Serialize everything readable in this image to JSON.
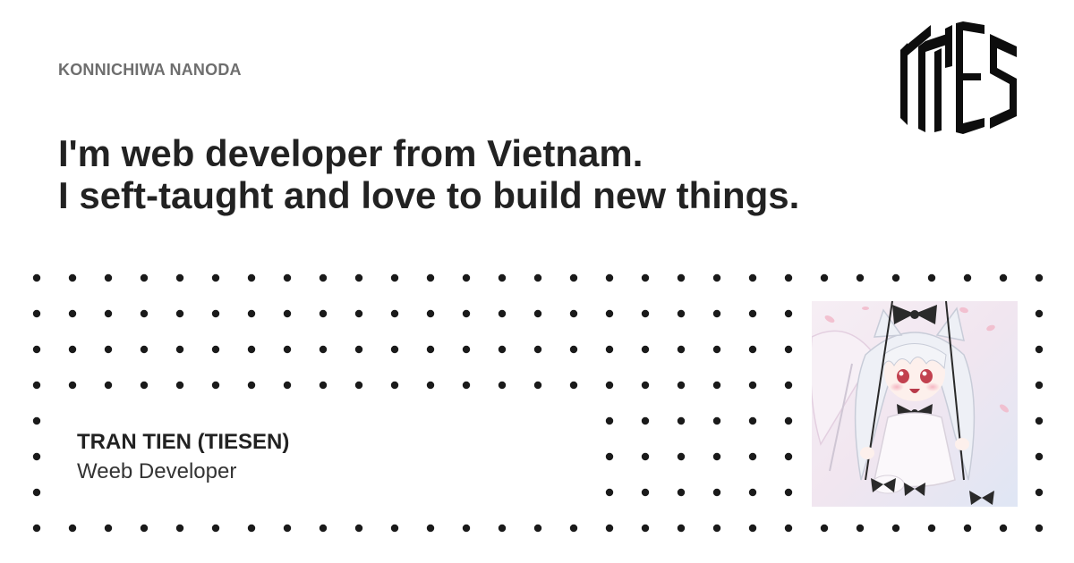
{
  "kicker": "KONNICHIWA NANODA",
  "headline": {
    "line1": "I'm web developer from Vietnam.",
    "line2": "I seft-taught and love to build new things."
  },
  "author": {
    "name": "TRAN TIEN (TIESEN)",
    "role": "Weeb Developer"
  },
  "logo": {
    "icon": "tiesen-monogram-logo",
    "text": "TIES"
  },
  "avatar": {
    "icon": "anime-girl-avatar"
  },
  "colors": {
    "text": "#222222",
    "muted": "#6e6e6e",
    "dot": "#1a1a1a",
    "background": "#ffffff"
  }
}
